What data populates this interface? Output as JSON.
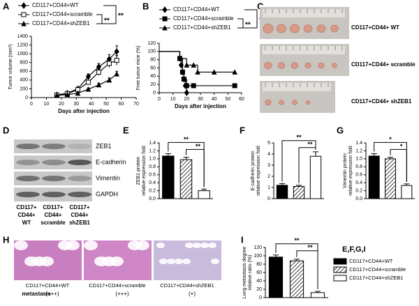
{
  "panel_labels": [
    "A",
    "B",
    "C",
    "D",
    "E",
    "F",
    "G",
    "H",
    "I"
  ],
  "chart_data": [
    {
      "type": "line",
      "xlabel": "Days after injection",
      "ylabel": "Tumor volume (mm³)",
      "x": [
        17,
        24,
        31,
        38,
        45,
        52,
        57
      ],
      "xlim": [
        0,
        70
      ],
      "xticks": [
        0,
        10,
        20,
        30,
        40,
        50,
        60,
        70
      ],
      "ylim": [
        0,
        1400
      ],
      "yticks": [
        0,
        200,
        400,
        600,
        800,
        1000,
        1200,
        1400
      ],
      "series": [
        {
          "name": "CD117+CD44+WT",
          "color": "#000000",
          "marker": "diamond",
          "marker_fill": "filled",
          "values": [
            60,
            100,
            200,
            480,
            700,
            880,
            1050
          ],
          "errors": [
            10,
            20,
            40,
            60,
            80,
            100,
            130
          ]
        },
        {
          "name": "CD117+CD44+scramble",
          "color": "#000000",
          "marker": "square",
          "marker_fill": "open",
          "values": [
            60,
            90,
            180,
            350,
            580,
            780,
            850
          ],
          "errors": [
            10,
            15,
            30,
            50,
            70,
            90,
            110
          ]
        },
        {
          "name": "CD117+CD44+shZEB1",
          "color": "#000000",
          "marker": "triangle",
          "marker_fill": "filled",
          "values": [
            50,
            70,
            100,
            190,
            290,
            400,
            540
          ],
          "errors": [
            8,
            10,
            20,
            30,
            40,
            50,
            60
          ]
        }
      ],
      "annotations": [
        "**",
        "**"
      ]
    },
    {
      "type": "step",
      "xlabel": "Days after injection",
      "ylabel": "Free tumor mice (%)",
      "xlim": [
        0,
        60
      ],
      "xticks": [
        0,
        10,
        20,
        30,
        40,
        50,
        60
      ],
      "ylim": [
        0,
        120
      ],
      "yticks": [
        0,
        20,
        40,
        60,
        80,
        100,
        120
      ],
      "series": [
        {
          "name": "CD117+CD44+WT",
          "color": "#000000",
          "marker": "diamond",
          "marker_fill": "filled",
          "x": [
            0,
            15,
            16,
            17,
            18,
            19,
            20
          ],
          "values": [
            100,
            83,
            67,
            50,
            33,
            17,
            0
          ]
        },
        {
          "name": "CD117+CD44+scramble",
          "color": "#000000",
          "marker": "square",
          "marker_fill": "filled",
          "x": [
            0,
            15,
            17,
            18,
            20,
            25,
            55
          ],
          "values": [
            100,
            83,
            50,
            33,
            17,
            17,
            17
          ]
        },
        {
          "name": "CD117+CD44+shZEB1",
          "color": "#000000",
          "marker": "triangle",
          "marker_fill": "filled",
          "x": [
            0,
            15,
            20,
            25,
            28,
            40,
            55
          ],
          "values": [
            100,
            83,
            67,
            67,
            50,
            50,
            50
          ]
        }
      ],
      "annotations": [
        "**",
        "**"
      ]
    },
    {
      "type": "bar",
      "ylabel": [
        "ZEB1 protein",
        "relative expression fold"
      ],
      "categories": [
        null,
        null,
        null
      ],
      "values": [
        1.07,
        0.98,
        0.2
      ],
      "errors": [
        0.06,
        0.06,
        0.04
      ],
      "fills": [
        "solid",
        "hatched",
        "open"
      ],
      "ylim": [
        0,
        1.4
      ],
      "yticks": [
        {
          "value": 0,
          "label": "0.0"
        },
        {
          "value": 0.2,
          "label": "0.2"
        },
        {
          "value": 0.4,
          "label": "0.4"
        },
        {
          "value": 0.6,
          "label": "0.6"
        },
        {
          "value": 0.8,
          "label": "0.8"
        },
        {
          "value": 1,
          "label": "1.0"
        },
        {
          "value": 1.2,
          "label": "1.2"
        },
        {
          "value": 1.4,
          "label": "1.4"
        }
      ],
      "annotations": [
        "**",
        "**"
      ]
    },
    {
      "type": "bar",
      "ylabel": [
        "E-cadherin protein",
        "relative expression fold"
      ],
      "categories": [
        null,
        null,
        null
      ],
      "values": [
        1.2,
        1.1,
        3.8
      ],
      "errors": [
        0.15,
        0.1,
        0.4
      ],
      "fills": [
        "solid",
        "hatched",
        "open"
      ],
      "ylim": [
        0,
        5
      ],
      "yticks": [
        0,
        1,
        2,
        3,
        4,
        5
      ],
      "annotations": [
        "**",
        "**"
      ]
    },
    {
      "type": "bar",
      "ylabel": [
        "Vimentin protein",
        "relative expression fold"
      ],
      "categories": [
        null,
        null,
        null
      ],
      "values": [
        1.07,
        1.0,
        0.33
      ],
      "errors": [
        0.06,
        0.04,
        0.04
      ],
      "fills": [
        "solid",
        "hatched",
        "open"
      ],
      "ylim": [
        0,
        1.4
      ],
      "yticks": [
        {
          "value": 0,
          "label": "0.0"
        },
        {
          "value": 0.2,
          "label": "0.2"
        },
        {
          "value": 0.4,
          "label": "0.4"
        },
        {
          "value": 0.6,
          "label": "0.6"
        },
        {
          "value": 0.8,
          "label": "0.8"
        },
        {
          "value": 1,
          "label": "1.0"
        },
        {
          "value": 1.2,
          "label": "1.2"
        },
        {
          "value": 1.4,
          "label": "1.4"
        }
      ],
      "annotations": [
        "*",
        "*"
      ]
    },
    {
      "type": "bar",
      "ylabel": [
        "Lung metastasis degree",
        "relative ratio (%)"
      ],
      "categories": [
        null,
        null,
        null
      ],
      "values": [
        97,
        88,
        12
      ],
      "errors": [
        5,
        4,
        3
      ],
      "fills": [
        "solid",
        "hatched",
        "open"
      ],
      "ylim": [
        0,
        120
      ],
      "yticks": [
        0,
        20,
        40,
        60,
        80,
        100,
        120
      ],
      "annotations": [
        "**",
        "**"
      ]
    }
  ],
  "bar_legend": {
    "title": "E,F,G,I",
    "entries": [
      "CD117+CD44+WT",
      "CD117+CD44+scramble",
      "CD117+CD44+shZEB1"
    ],
    "fills": [
      "solid",
      "hatched",
      "open"
    ]
  },
  "tumor_photos": {
    "labels": [
      "CD117+CD44+ WT",
      "CD117+CD44+ scramble",
      "CD117+CD44+ shZEB1"
    ]
  },
  "western_blot": {
    "bands": [
      "ZEB1",
      "E-cadherin",
      "Vimentin",
      "GAPDH"
    ],
    "lanes": [
      [
        "CD117+",
        "CD44+",
        "WT"
      ],
      [
        "CD117+",
        "CD44+",
        "scramble"
      ],
      [
        "CD117+",
        "CD44+",
        "shZEB1"
      ]
    ]
  },
  "histology": {
    "captions": [
      "CD117+CD44+WT",
      "CD117+CD44+scramble",
      "CD117+CD44+shZEB1"
    ],
    "metastasis_label": "metastasis",
    "grades": [
      "(+++)",
      "(+++)",
      "(+)"
    ]
  }
}
